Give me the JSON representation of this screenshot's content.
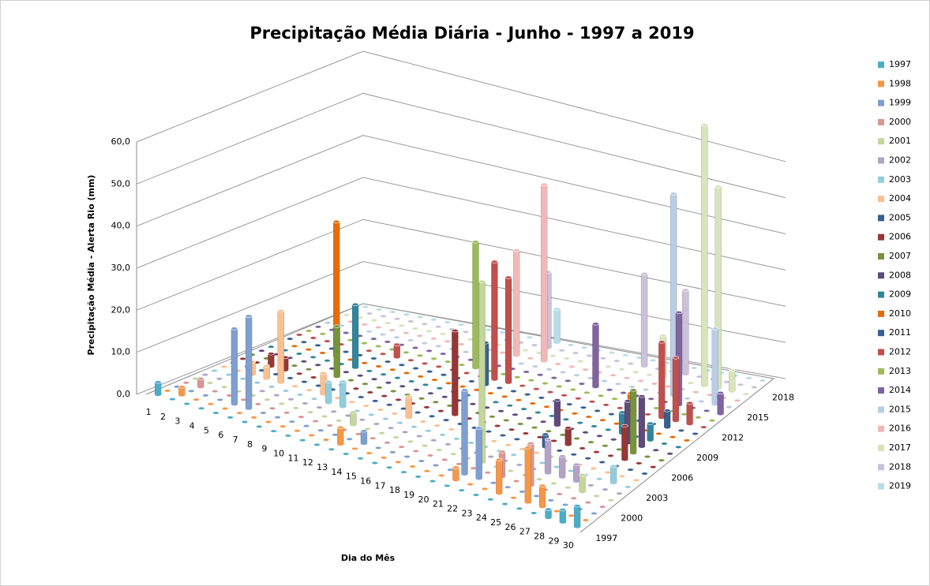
{
  "chart_data": {
    "type": "bar3d",
    "title": "Precipitação Média Diária - Junho - 1997 a 2019",
    "x_label": "Dia do Mês",
    "y_label": "Precipitação  Média - Alerta Rio (mm)",
    "categories": [
      "1",
      "2",
      "3",
      "4",
      "5",
      "6",
      "7",
      "8",
      "9",
      "10",
      "11",
      "12",
      "13",
      "14",
      "15",
      "16",
      "17",
      "18",
      "19",
      "20",
      "21",
      "22",
      "23",
      "24",
      "25",
      "26",
      "27",
      "28",
      "29",
      "30"
    ],
    "ylim": [
      0,
      60
    ],
    "yticks": [
      {
        "value": 0,
        "label": "0,0"
      },
      {
        "value": 10,
        "label": "10,0"
      },
      {
        "value": 20,
        "label": "20,0"
      },
      {
        "value": 30,
        "label": "30,0"
      },
      {
        "value": 40,
        "label": "40,0"
      },
      {
        "value": 50,
        "label": "50,0"
      },
      {
        "value": 60,
        "label": "60,0"
      }
    ],
    "zticks": [
      "1997",
      "2000",
      "2003",
      "2006",
      "2009",
      "2012",
      "2015",
      "2018"
    ],
    "grid": true,
    "legend": "right",
    "series": [
      {
        "name": "1997",
        "color": "#4bacc6",
        "values": [
          3,
          0,
          0,
          0,
          0,
          0,
          0,
          0,
          0,
          0,
          0,
          0,
          0,
          0,
          0,
          0,
          0,
          0,
          0,
          0,
          0,
          0,
          0,
          0,
          0,
          0,
          0,
          2,
          3,
          5
        ]
      },
      {
        "name": "1998",
        "color": "#f79646",
        "values": [
          0,
          2,
          0,
          0,
          0,
          0,
          0,
          0,
          0,
          0,
          0,
          0,
          4,
          0,
          0,
          0,
          0,
          0,
          0,
          0,
          3,
          0,
          0,
          8,
          0,
          13,
          5,
          0,
          0,
          0
        ]
      },
      {
        "name": "1999",
        "color": "#7f9fd0",
        "values": [
          0,
          0,
          0,
          0,
          18,
          22,
          0,
          0,
          0,
          0,
          0,
          0,
          0,
          3,
          0,
          0,
          0,
          0,
          0,
          0,
          20,
          12,
          0,
          0,
          0,
          0,
          0,
          0,
          0,
          0
        ]
      },
      {
        "name": "2000",
        "color": "#d99694",
        "values": [
          0,
          2,
          0,
          0,
          0,
          0,
          0,
          0,
          0,
          0,
          0,
          0,
          0,
          0,
          0,
          0,
          0,
          0,
          0,
          0,
          0,
          0,
          6,
          0,
          10,
          0,
          0,
          0,
          0,
          0
        ]
      },
      {
        "name": "2001",
        "color": "#c3d69b",
        "values": [
          0,
          0,
          0,
          0,
          0,
          0,
          0,
          0,
          0,
          0,
          0,
          3,
          0,
          0,
          0,
          0,
          0,
          0,
          0,
          0,
          43,
          0,
          0,
          0,
          0,
          0,
          0,
          4,
          0,
          0
        ]
      },
      {
        "name": "2002",
        "color": "#b3a2c7",
        "values": [
          0,
          0,
          0,
          0,
          0,
          0,
          0,
          0,
          0,
          0,
          0,
          0,
          0,
          0,
          0,
          0,
          0,
          0,
          0,
          0,
          0,
          0,
          0,
          0,
          8,
          5,
          4,
          0,
          0,
          0
        ]
      },
      {
        "name": "2003",
        "color": "#93cddd",
        "values": [
          0,
          0,
          0,
          0,
          0,
          0,
          0,
          0,
          5,
          6,
          0,
          0,
          0,
          0,
          0,
          0,
          0,
          0,
          0,
          0,
          0,
          0,
          0,
          0,
          0,
          0,
          0,
          0,
          4,
          0
        ]
      },
      {
        "name": "2004",
        "color": "#fac090",
        "values": [
          0,
          0,
          3,
          3,
          17,
          0,
          0,
          5,
          0,
          0,
          0,
          0,
          0,
          5,
          0,
          0,
          0,
          0,
          0,
          0,
          0,
          0,
          0,
          0,
          0,
          0,
          0,
          0,
          0,
          0
        ]
      },
      {
        "name": "2005",
        "color": "#366092",
        "values": [
          0,
          0,
          0,
          0,
          0,
          0,
          0,
          0,
          0,
          0,
          0,
          0,
          0,
          0,
          0,
          0,
          0,
          0,
          0,
          0,
          0,
          0,
          3,
          0,
          0,
          0,
          0,
          0,
          0,
          0
        ]
      },
      {
        "name": "2006",
        "color": "#953735",
        "values": [
          0,
          0,
          3,
          3,
          0,
          0,
          0,
          0,
          0,
          0,
          0,
          0,
          0,
          0,
          0,
          20,
          0,
          0,
          0,
          0,
          0,
          0,
          0,
          4,
          0,
          0,
          0,
          8,
          0,
          0
        ]
      },
      {
        "name": "2007",
        "color": "#77933c",
        "values": [
          0,
          0,
          0,
          0,
          0,
          0,
          12,
          0,
          0,
          0,
          0,
          0,
          0,
          0,
          0,
          0,
          0,
          0,
          0,
          0,
          0,
          0,
          0,
          0,
          0,
          0,
          0,
          15,
          0,
          0
        ]
      },
      {
        "name": "2008",
        "color": "#604a7b",
        "values": [
          0,
          0,
          0,
          0,
          0,
          0,
          0,
          0,
          0,
          0,
          0,
          0,
          0,
          0,
          0,
          0,
          0,
          0,
          0,
          0,
          0,
          6,
          0,
          0,
          0,
          0,
          10,
          12,
          0,
          0
        ]
      },
      {
        "name": "2009",
        "color": "#31859c",
        "values": [
          0,
          0,
          0,
          0,
          0,
          0,
          15,
          0,
          0,
          0,
          0,
          0,
          0,
          0,
          0,
          0,
          0,
          0,
          0,
          0,
          0,
          0,
          0,
          0,
          0,
          5,
          0,
          4,
          0,
          0
        ]
      },
      {
        "name": "2010",
        "color": "#e46c0a",
        "values": [
          0,
          0,
          0,
          0,
          32,
          0,
          0,
          0,
          0,
          0,
          0,
          0,
          0,
          0,
          0,
          0,
          0,
          0,
          0,
          0,
          0,
          0,
          0,
          0,
          0,
          8,
          0,
          0,
          0,
          0
        ]
      },
      {
        "name": "2011",
        "color": "#376092",
        "values": [
          0,
          0,
          0,
          0,
          0,
          0,
          0,
          0,
          0,
          0,
          0,
          0,
          0,
          0,
          10,
          0,
          0,
          0,
          0,
          0,
          0,
          0,
          0,
          0,
          0,
          0,
          0,
          4,
          0,
          0
        ]
      },
      {
        "name": "2012",
        "color": "#c0504d",
        "values": [
          0,
          0,
          0,
          0,
          0,
          0,
          0,
          3,
          0,
          0,
          0,
          0,
          0,
          0,
          28,
          25,
          0,
          0,
          0,
          0,
          0,
          0,
          0,
          0,
          0,
          0,
          18,
          15,
          5,
          0
        ]
      },
      {
        "name": "2013",
        "color": "#9bbb59",
        "values": [
          0,
          0,
          0,
          0,
          0,
          0,
          0,
          0,
          0,
          0,
          0,
          0,
          30,
          0,
          0,
          0,
          0,
          0,
          0,
          0,
          0,
          0,
          0,
          0,
          0,
          0,
          0,
          0,
          0,
          0
        ]
      },
      {
        "name": "2014",
        "color": "#8064a2",
        "values": [
          0,
          0,
          0,
          0,
          0,
          0,
          0,
          0,
          0,
          0,
          0,
          0,
          0,
          0,
          0,
          0,
          0,
          0,
          0,
          0,
          15,
          0,
          0,
          0,
          0,
          0,
          22,
          0,
          0,
          5
        ]
      },
      {
        "name": "2015",
        "color": "#b9cde5",
        "values": [
          0,
          0,
          0,
          0,
          0,
          0,
          0,
          0,
          0,
          0,
          0,
          0,
          0,
          0,
          0,
          0,
          0,
          0,
          0,
          0,
          0,
          0,
          0,
          0,
          0,
          48,
          0,
          0,
          18,
          0
        ]
      },
      {
        "name": "2016",
        "color": "#f2b8b8",
        "values": [
          0,
          0,
          0,
          0,
          0,
          0,
          0,
          0,
          0,
          0,
          0,
          0,
          0,
          25,
          0,
          42,
          0,
          0,
          0,
          0,
          0,
          0,
          0,
          0,
          0,
          0,
          0,
          0,
          0,
          0
        ]
      },
      {
        "name": "2017",
        "color": "#d7e4bc",
        "values": [
          0,
          0,
          0,
          0,
          0,
          0,
          0,
          0,
          0,
          0,
          0,
          0,
          0,
          0,
          0,
          0,
          0,
          0,
          0,
          0,
          0,
          0,
          0,
          10,
          0,
          0,
          62,
          48,
          5,
          0
        ]
      },
      {
        "name": "2018",
        "color": "#ccc1da",
        "values": [
          0,
          0,
          0,
          0,
          0,
          0,
          0,
          0,
          0,
          0,
          0,
          0,
          0,
          0,
          18,
          0,
          0,
          0,
          0,
          0,
          0,
          22,
          0,
          0,
          20,
          0,
          0,
          0,
          0,
          0
        ]
      },
      {
        "name": "2019",
        "color": "#b7dee8",
        "values": [
          0,
          0,
          0,
          0,
          0,
          0,
          0,
          0,
          0,
          0,
          0,
          0,
          0,
          0,
          8,
          0,
          0,
          0,
          0,
          0,
          0,
          0,
          0,
          0,
          0,
          0,
          0,
          0,
          0,
          0
        ]
      }
    ]
  }
}
